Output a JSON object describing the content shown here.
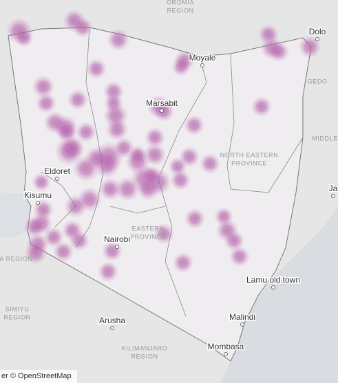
{
  "labels": [
    {
      "kind": "region",
      "lines": [
        "OROMIA",
        "REGION"
      ]
    },
    {
      "kind": "city",
      "lines": [
        "Dolo"
      ]
    },
    {
      "kind": "city",
      "lines": [
        "Moyale"
      ]
    },
    {
      "kind": "region",
      "lines": [
        "GEDO"
      ]
    },
    {
      "kind": "city",
      "lines": [
        "Marsabit"
      ]
    },
    {
      "kind": "region",
      "lines": [
        "MIDDLE"
      ]
    },
    {
      "kind": "region",
      "lines": [
        "NORTH EASTERN",
        "PROVINCE"
      ]
    },
    {
      "kind": "city",
      "lines": [
        "Eldoret"
      ]
    },
    {
      "kind": "city",
      "lines": [
        "Kisumu"
      ]
    },
    {
      "kind": "region",
      "lines": [
        "EASTERN",
        "PROVINCE"
      ]
    },
    {
      "kind": "city",
      "lines": [
        "Nairobi"
      ]
    },
    {
      "kind": "region",
      "lines": [
        "RA REGION"
      ]
    },
    {
      "kind": "city",
      "lines": [
        "Lamu old town"
      ]
    },
    {
      "kind": "region",
      "lines": [
        "SIMIYU",
        "REGION"
      ]
    },
    {
      "kind": "city",
      "lines": [
        "Malindi"
      ]
    },
    {
      "kind": "city",
      "lines": [
        "Arusha"
      ]
    },
    {
      "kind": "region",
      "lines": [
        "KILIMANJARO",
        "REGION"
      ]
    },
    {
      "kind": "city",
      "lines": [
        "Mombasa"
      ]
    },
    {
      "kind": "city",
      "lines": [
        "Ja"
      ]
    }
  ],
  "attribution": "er © OpenStreetMap"
}
